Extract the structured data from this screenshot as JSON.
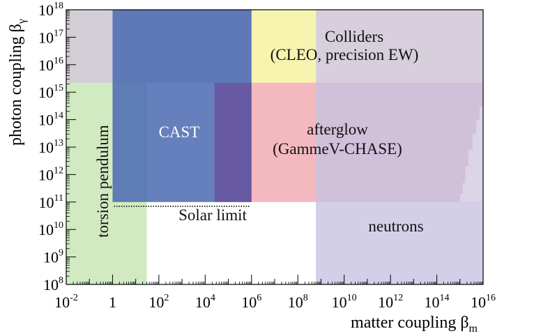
{
  "chart_data": {
    "type": "area",
    "xlabel": "matter coupling β",
    "xlabel_sub": "m",
    "ylabel": "photon coupling β",
    "ylabel_sub": "γ",
    "x_scale": "log10",
    "y_scale": "log10",
    "xlim": [
      0.01,
      1e+16
    ],
    "ylim": [
      100000000.0,
      1e+18
    ],
    "x_ticks": [
      {
        "value": 0.01,
        "base": "10",
        "exp": "-2"
      },
      {
        "value": 1,
        "base": "1",
        "exp": ""
      },
      {
        "value": 100,
        "base": "10",
        "exp": "2"
      },
      {
        "value": 10000,
        "base": "10",
        "exp": "4"
      },
      {
        "value": 1000000.0,
        "base": "10",
        "exp": "6"
      },
      {
        "value": 100000000.0,
        "base": "10",
        "exp": "8"
      },
      {
        "value": 10000000000.0,
        "base": "10",
        "exp": "10"
      },
      {
        "value": 1000000000000.0,
        "base": "10",
        "exp": "12"
      },
      {
        "value": 100000000000000.0,
        "base": "10",
        "exp": "14"
      },
      {
        "value": 1e+16,
        "base": "10",
        "exp": "16"
      }
    ],
    "y_ticks": [
      {
        "value": 100000000.0,
        "base": "10",
        "exp": "8"
      },
      {
        "value": 1000000000.0,
        "base": "10",
        "exp": "9"
      },
      {
        "value": 10000000000.0,
        "base": "10",
        "exp": "10"
      },
      {
        "value": 100000000000.0,
        "base": "10",
        "exp": "11"
      },
      {
        "value": 1000000000000.0,
        "base": "10",
        "exp": "12"
      },
      {
        "value": 10000000000000.0,
        "base": "10",
        "exp": "13"
      },
      {
        "value": 100000000000000.0,
        "base": "10",
        "exp": "14"
      },
      {
        "value": 1000000000000000.0,
        "base": "10",
        "exp": "15"
      },
      {
        "value": 1e+16,
        "base": "10",
        "exp": "16"
      },
      {
        "value": 1e+17,
        "base": "10",
        "exp": "17"
      },
      {
        "value": 1e+18,
        "base": "10",
        "exp": "18"
      }
    ],
    "regions": [
      {
        "key": "torsion",
        "label": "torsion pendulum",
        "color": "#b9dea0",
        "opacity": 0.65,
        "x": [
          0.01,
          30
        ],
        "y": [
          100000000.0,
          1e+18
        ]
      },
      {
        "key": "colliders",
        "label": "Colliders\n(CLEO, precision EW)",
        "color": "#d3cad8",
        "opacity": 0.9,
        "x": [
          0.01,
          1e+16
        ],
        "y": [
          2200000000000000.0,
          1e+18
        ]
      },
      {
        "key": "colliders-yellow",
        "label": "",
        "color": "#f7f4b0",
        "opacity": 1,
        "x": [
          1000000.0,
          600000000.0
        ],
        "y": [
          2200000000000000.0,
          1e+18
        ]
      },
      {
        "key": "afterglow",
        "label": "afterglow\n(GammeV-CHASE)",
        "color": "#f2adb4",
        "opacity": 0.85,
        "x": [
          1000000.0,
          1e+16
        ],
        "y": [
          100000000000.0,
          2200000000000000.0
        ]
      },
      {
        "key": "cast",
        "label": "CAST",
        "color": "#4a6ab2",
        "opacity": 0.85,
        "x": [
          1,
          1000000.0
        ],
        "y": [
          100000000000.0,
          1e+18
        ]
      },
      {
        "key": "cast-overlap",
        "label": "",
        "color": "#6a4d99",
        "opacity": 0.75,
        "x": [
          25000,
          1000000.0
        ],
        "y": [
          100000000000.0,
          2200000000000000.0
        ]
      },
      {
        "key": "neutrons",
        "label": "neutrons",
        "color": "#c6c1e2",
        "opacity": 0.78,
        "x": [
          600000000.0,
          1e+16
        ],
        "y": [
          100000000.0,
          2200000000000000.0
        ]
      }
    ],
    "neutrons_boundary": [
      [
        1000000000000000.0,
        100000000000.0
      ],
      [
        1000000000000000.0,
        200000000000.0
      ],
      [
        1300000000000000.0,
        500000000000.0
      ],
      [
        1700000000000000.0,
        2000000000000.0
      ],
      [
        2300000000000000.0,
        8000000000000.0
      ],
      [
        3500000000000000.0,
        30000000000000.0
      ],
      [
        5000000000000000.0,
        100000000000000.0
      ],
      [
        7000000000000000.0,
        300000000000000.0
      ],
      [
        1e+16,
        800000000000000.0
      ]
    ],
    "solar_limit": {
      "label": "Solar limit",
      "x": [
        1,
        1000000.0
      ],
      "y": 70000000000.0
    },
    "annotations": {
      "colliders_line1": "Colliders",
      "colliders_line2": "(CLEO, precision EW)",
      "cast": "CAST",
      "afterglow_line1": "afterglow",
      "afterglow_line2": "(GammeV-CHASE)",
      "torsion": "torsion pendulum",
      "neutrons": "neutrons",
      "solar": "Solar limit"
    },
    "grid": false,
    "legend": "none"
  }
}
